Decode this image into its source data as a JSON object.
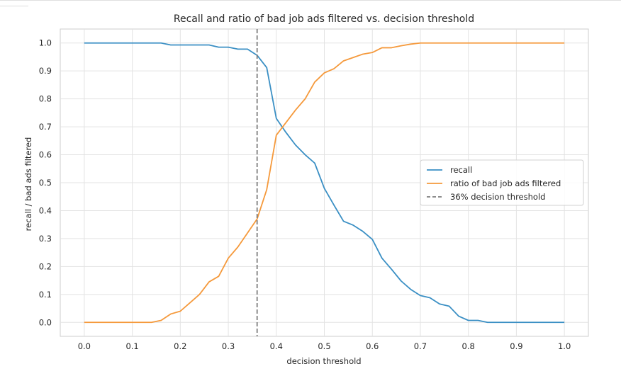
{
  "chart_data": {
    "type": "line",
    "title": "Recall and ratio of bad job ads filtered vs. decision threshold",
    "xlabel": "decision threshold",
    "ylabel": "recall / bad ads filtered",
    "xlim": [
      -0.05,
      1.05
    ],
    "ylim": [
      -0.05,
      1.05
    ],
    "xticks": [
      0.0,
      0.1,
      0.2,
      0.3,
      0.4,
      0.5,
      0.6,
      0.7,
      0.8,
      0.9,
      1.0
    ],
    "xtick_labels": [
      "0.0",
      "0.1",
      "0.2",
      "0.3",
      "0.4",
      "0.5",
      "0.6",
      "0.7",
      "0.8",
      "0.9",
      "1.0"
    ],
    "yticks": [
      0.0,
      0.1,
      0.2,
      0.3,
      0.4,
      0.5,
      0.6,
      0.7,
      0.8,
      0.9,
      1.0
    ],
    "ytick_labels": [
      "0.0",
      "0.1",
      "0.2",
      "0.3",
      "0.4",
      "0.5",
      "0.6",
      "0.7",
      "0.8",
      "0.9",
      "1.0"
    ],
    "grid": true,
    "legend_position": "center-right",
    "x": [
      0.0,
      0.02,
      0.04,
      0.06,
      0.08,
      0.1,
      0.12,
      0.14,
      0.16,
      0.18,
      0.2,
      0.22,
      0.24,
      0.26,
      0.28,
      0.3,
      0.32,
      0.34,
      0.36,
      0.38,
      0.4,
      0.42,
      0.44,
      0.46,
      0.48,
      0.5,
      0.52,
      0.54,
      0.56,
      0.58,
      0.6,
      0.62,
      0.64,
      0.66,
      0.68,
      0.7,
      0.72,
      0.74,
      0.76,
      0.78,
      0.8,
      0.82,
      0.84,
      0.86,
      0.88,
      0.9,
      0.92,
      0.94,
      0.96,
      0.98,
      1.0
    ],
    "series": [
      {
        "name": "recall",
        "color": "#3a8fc4",
        "values": [
          1.0,
          1.0,
          1.0,
          1.0,
          1.0,
          1.0,
          1.0,
          1.0,
          1.0,
          0.993,
          0.993,
          0.993,
          0.993,
          0.993,
          0.985,
          0.985,
          0.978,
          0.978,
          0.956,
          0.912,
          0.73,
          0.68,
          0.635,
          0.6,
          0.57,
          0.48,
          0.42,
          0.362,
          0.348,
          0.326,
          0.297,
          0.23,
          0.19,
          0.148,
          0.118,
          0.096,
          0.088,
          0.066,
          0.058,
          0.022,
          0.007,
          0.007,
          0.0,
          0.0,
          0.0,
          0.0,
          0.0,
          0.0,
          0.0,
          0.0,
          0.0
        ]
      },
      {
        "name": "ratio of bad job ads filtered",
        "color": "#f5993b",
        "values": [
          0.0,
          0.0,
          0.0,
          0.0,
          0.0,
          0.0,
          0.0,
          0.0,
          0.007,
          0.03,
          0.04,
          0.07,
          0.1,
          0.145,
          0.165,
          0.23,
          0.27,
          0.32,
          0.37,
          0.475,
          0.67,
          0.715,
          0.76,
          0.8,
          0.86,
          0.893,
          0.908,
          0.936,
          0.948,
          0.96,
          0.966,
          0.983,
          0.983,
          0.99,
          0.996,
          1.0,
          1.0,
          1.0,
          1.0,
          1.0,
          1.0,
          1.0,
          1.0,
          1.0,
          1.0,
          1.0,
          1.0,
          1.0,
          1.0,
          1.0,
          1.0
        ]
      }
    ],
    "vline": {
      "name": "36% decision threshold",
      "x": 0.36,
      "color": "#7f7f7f",
      "style": "dashed"
    }
  }
}
